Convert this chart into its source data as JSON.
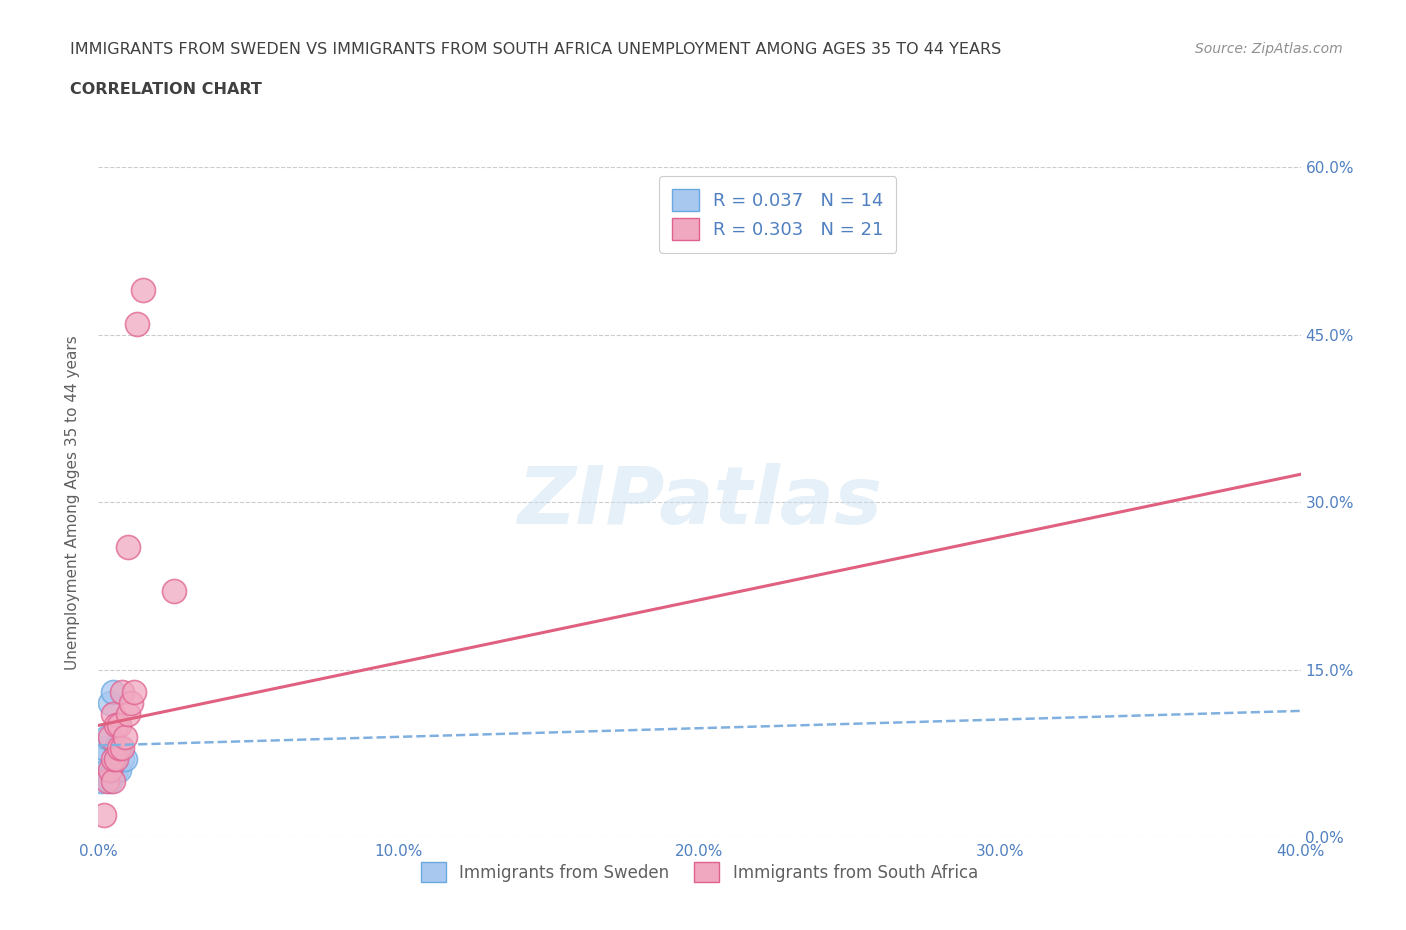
{
  "title_line1": "IMMIGRANTS FROM SWEDEN VS IMMIGRANTS FROM SOUTH AFRICA UNEMPLOYMENT AMONG AGES 35 TO 44 YEARS",
  "title_line2": "CORRELATION CHART",
  "source": "Source: ZipAtlas.com",
  "ylabel": "Unemployment Among Ages 35 to 44 years",
  "xlim": [
    0.0,
    0.4
  ],
  "ylim": [
    0.0,
    0.6
  ],
  "xticks": [
    0.0,
    0.1,
    0.2,
    0.3,
    0.4
  ],
  "yticks": [
    0.0,
    0.15,
    0.3,
    0.45,
    0.6
  ],
  "sweden_color": "#a8c8f0",
  "sweden_edge": "#6aa8e0",
  "south_africa_color": "#f0a8c0",
  "south_africa_edge": "#e06090",
  "sweden_R": 0.037,
  "sweden_N": 14,
  "south_africa_R": 0.303,
  "south_africa_N": 21,
  "legend_label_sweden": "Immigrants from Sweden",
  "legend_label_south_africa": "Immigrants from South Africa",
  "watermark": "ZIPatlas",
  "sweden_x": [
    0.001,
    0.002,
    0.002,
    0.003,
    0.003,
    0.004,
    0.004,
    0.005,
    0.005,
    0.006,
    0.006,
    0.007,
    0.008,
    0.009
  ],
  "sweden_y": [
    0.05,
    0.07,
    0.08,
    0.06,
    0.09,
    0.05,
    0.12,
    0.06,
    0.13,
    0.06,
    0.08,
    0.06,
    0.07,
    0.07
  ],
  "south_africa_x": [
    0.002,
    0.003,
    0.004,
    0.004,
    0.005,
    0.005,
    0.005,
    0.006,
    0.006,
    0.007,
    0.007,
    0.008,
    0.008,
    0.009,
    0.01,
    0.01,
    0.011,
    0.012,
    0.013,
    0.015,
    0.025
  ],
  "south_africa_y": [
    0.02,
    0.05,
    0.06,
    0.09,
    0.05,
    0.07,
    0.11,
    0.07,
    0.1,
    0.08,
    0.1,
    0.08,
    0.13,
    0.09,
    0.11,
    0.26,
    0.12,
    0.13,
    0.46,
    0.49,
    0.22
  ],
  "trend_pink_x0": 0.0,
  "trend_pink_y0": 0.1,
  "trend_pink_x1": 0.4,
  "trend_pink_y1": 0.325,
  "trend_blue_x0": 0.0,
  "trend_blue_y0": 0.082,
  "trend_blue_x1": 0.4,
  "trend_blue_y1": 0.113,
  "grid_color": "#cccccc",
  "bg_color": "#ffffff",
  "title_color": "#404040",
  "axis_color": "#5080c0",
  "trend_blue_color": "#80b0e0",
  "trend_pink_color": "#e06080"
}
